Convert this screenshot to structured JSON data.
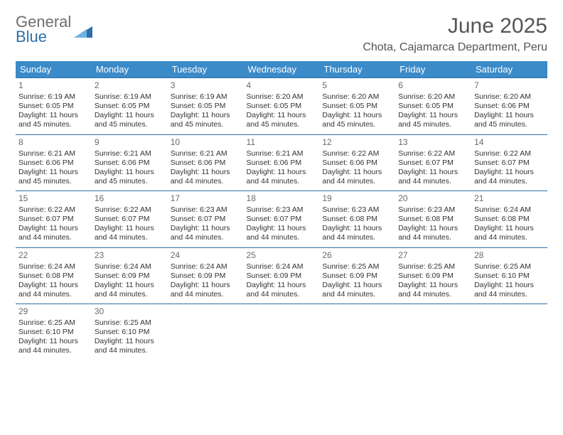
{
  "brand": {
    "line1": "General",
    "line2": "Blue"
  },
  "colors": {
    "header_bg": "#3b8bc9",
    "row_border": "#2f6fa7",
    "brand_gray": "#6e6e6e",
    "brand_blue": "#2f6fa7"
  },
  "title": "June 2025",
  "location": "Chota, Cajamarca Department, Peru",
  "weekdays": [
    "Sunday",
    "Monday",
    "Tuesday",
    "Wednesday",
    "Thursday",
    "Friday",
    "Saturday"
  ],
  "weeks": [
    [
      {
        "day": "1",
        "sunrise": "Sunrise: 6:19 AM",
        "sunset": "Sunset: 6:05 PM",
        "d1": "Daylight: 11 hours",
        "d2": "and 45 minutes."
      },
      {
        "day": "2",
        "sunrise": "Sunrise: 6:19 AM",
        "sunset": "Sunset: 6:05 PM",
        "d1": "Daylight: 11 hours",
        "d2": "and 45 minutes."
      },
      {
        "day": "3",
        "sunrise": "Sunrise: 6:19 AM",
        "sunset": "Sunset: 6:05 PM",
        "d1": "Daylight: 11 hours",
        "d2": "and 45 minutes."
      },
      {
        "day": "4",
        "sunrise": "Sunrise: 6:20 AM",
        "sunset": "Sunset: 6:05 PM",
        "d1": "Daylight: 11 hours",
        "d2": "and 45 minutes."
      },
      {
        "day": "5",
        "sunrise": "Sunrise: 6:20 AM",
        "sunset": "Sunset: 6:05 PM",
        "d1": "Daylight: 11 hours",
        "d2": "and 45 minutes."
      },
      {
        "day": "6",
        "sunrise": "Sunrise: 6:20 AM",
        "sunset": "Sunset: 6:05 PM",
        "d1": "Daylight: 11 hours",
        "d2": "and 45 minutes."
      },
      {
        "day": "7",
        "sunrise": "Sunrise: 6:20 AM",
        "sunset": "Sunset: 6:06 PM",
        "d1": "Daylight: 11 hours",
        "d2": "and 45 minutes."
      }
    ],
    [
      {
        "day": "8",
        "sunrise": "Sunrise: 6:21 AM",
        "sunset": "Sunset: 6:06 PM",
        "d1": "Daylight: 11 hours",
        "d2": "and 45 minutes."
      },
      {
        "day": "9",
        "sunrise": "Sunrise: 6:21 AM",
        "sunset": "Sunset: 6:06 PM",
        "d1": "Daylight: 11 hours",
        "d2": "and 45 minutes."
      },
      {
        "day": "10",
        "sunrise": "Sunrise: 6:21 AM",
        "sunset": "Sunset: 6:06 PM",
        "d1": "Daylight: 11 hours",
        "d2": "and 44 minutes."
      },
      {
        "day": "11",
        "sunrise": "Sunrise: 6:21 AM",
        "sunset": "Sunset: 6:06 PM",
        "d1": "Daylight: 11 hours",
        "d2": "and 44 minutes."
      },
      {
        "day": "12",
        "sunrise": "Sunrise: 6:22 AM",
        "sunset": "Sunset: 6:06 PM",
        "d1": "Daylight: 11 hours",
        "d2": "and 44 minutes."
      },
      {
        "day": "13",
        "sunrise": "Sunrise: 6:22 AM",
        "sunset": "Sunset: 6:07 PM",
        "d1": "Daylight: 11 hours",
        "d2": "and 44 minutes."
      },
      {
        "day": "14",
        "sunrise": "Sunrise: 6:22 AM",
        "sunset": "Sunset: 6:07 PM",
        "d1": "Daylight: 11 hours",
        "d2": "and 44 minutes."
      }
    ],
    [
      {
        "day": "15",
        "sunrise": "Sunrise: 6:22 AM",
        "sunset": "Sunset: 6:07 PM",
        "d1": "Daylight: 11 hours",
        "d2": "and 44 minutes."
      },
      {
        "day": "16",
        "sunrise": "Sunrise: 6:22 AM",
        "sunset": "Sunset: 6:07 PM",
        "d1": "Daylight: 11 hours",
        "d2": "and 44 minutes."
      },
      {
        "day": "17",
        "sunrise": "Sunrise: 6:23 AM",
        "sunset": "Sunset: 6:07 PM",
        "d1": "Daylight: 11 hours",
        "d2": "and 44 minutes."
      },
      {
        "day": "18",
        "sunrise": "Sunrise: 6:23 AM",
        "sunset": "Sunset: 6:07 PM",
        "d1": "Daylight: 11 hours",
        "d2": "and 44 minutes."
      },
      {
        "day": "19",
        "sunrise": "Sunrise: 6:23 AM",
        "sunset": "Sunset: 6:08 PM",
        "d1": "Daylight: 11 hours",
        "d2": "and 44 minutes."
      },
      {
        "day": "20",
        "sunrise": "Sunrise: 6:23 AM",
        "sunset": "Sunset: 6:08 PM",
        "d1": "Daylight: 11 hours",
        "d2": "and 44 minutes."
      },
      {
        "day": "21",
        "sunrise": "Sunrise: 6:24 AM",
        "sunset": "Sunset: 6:08 PM",
        "d1": "Daylight: 11 hours",
        "d2": "and 44 minutes."
      }
    ],
    [
      {
        "day": "22",
        "sunrise": "Sunrise: 6:24 AM",
        "sunset": "Sunset: 6:08 PM",
        "d1": "Daylight: 11 hours",
        "d2": "and 44 minutes."
      },
      {
        "day": "23",
        "sunrise": "Sunrise: 6:24 AM",
        "sunset": "Sunset: 6:09 PM",
        "d1": "Daylight: 11 hours",
        "d2": "and 44 minutes."
      },
      {
        "day": "24",
        "sunrise": "Sunrise: 6:24 AM",
        "sunset": "Sunset: 6:09 PM",
        "d1": "Daylight: 11 hours",
        "d2": "and 44 minutes."
      },
      {
        "day": "25",
        "sunrise": "Sunrise: 6:24 AM",
        "sunset": "Sunset: 6:09 PM",
        "d1": "Daylight: 11 hours",
        "d2": "and 44 minutes."
      },
      {
        "day": "26",
        "sunrise": "Sunrise: 6:25 AM",
        "sunset": "Sunset: 6:09 PM",
        "d1": "Daylight: 11 hours",
        "d2": "and 44 minutes."
      },
      {
        "day": "27",
        "sunrise": "Sunrise: 6:25 AM",
        "sunset": "Sunset: 6:09 PM",
        "d1": "Daylight: 11 hours",
        "d2": "and 44 minutes."
      },
      {
        "day": "28",
        "sunrise": "Sunrise: 6:25 AM",
        "sunset": "Sunset: 6:10 PM",
        "d1": "Daylight: 11 hours",
        "d2": "and 44 minutes."
      }
    ],
    [
      {
        "day": "29",
        "sunrise": "Sunrise: 6:25 AM",
        "sunset": "Sunset: 6:10 PM",
        "d1": "Daylight: 11 hours",
        "d2": "and 44 minutes."
      },
      {
        "day": "30",
        "sunrise": "Sunrise: 6:25 AM",
        "sunset": "Sunset: 6:10 PM",
        "d1": "Daylight: 11 hours",
        "d2": "and 44 minutes."
      },
      null,
      null,
      null,
      null,
      null
    ]
  ]
}
